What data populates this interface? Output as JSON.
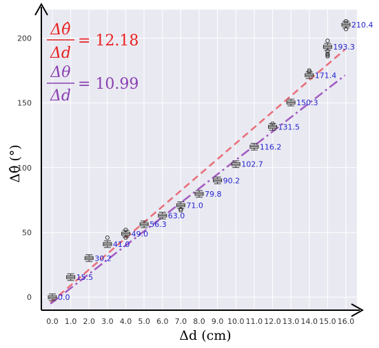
{
  "chart_data": {
    "type": "box",
    "x_categories": [
      "0.0",
      "1.0",
      "2.0",
      "3.0",
      "4.0",
      "5.0",
      "6.0",
      "7.0",
      "8.0",
      "9.0",
      "10.0",
      "11.0",
      "12.0",
      "13.0",
      "14.0",
      "15.0",
      "16.0"
    ],
    "x_values": [
      0,
      1,
      2,
      3,
      4,
      5,
      6,
      7,
      8,
      9,
      10,
      11,
      12,
      13,
      14,
      15,
      16
    ],
    "medians": [
      0.0,
      15.5,
      30.2,
      41.0,
      49.0,
      56.3,
      63.0,
      71.0,
      79.8,
      90.2,
      102.7,
      116.2,
      131.5,
      150.3,
      171.4,
      193.3,
      210.4
    ],
    "median_labels": [
      "0.0",
      "15.5",
      "30.2",
      "41.0",
      "49.0",
      "56.3",
      "63.0",
      "71.0",
      "79.8",
      "90.2",
      "102.7",
      "116.2",
      "131.5",
      "150.3",
      "171.4",
      "193.3",
      "210.4"
    ],
    "outliers": [
      [],
      [],
      [],
      [
        46
      ],
      [
        52,
        46
      ],
      [],
      [],
      [
        68,
        67
      ],
      [],
      [],
      [],
      [],
      [
        134
      ],
      [],
      [
        175,
        174
      ],
      [
        198,
        190,
        188,
        187,
        186
      ],
      [
        213,
        207
      ]
    ],
    "xlabel": "Δd (cm)",
    "ylabel": "Δθ̂ (°)",
    "y_ticks": [
      0,
      50,
      100,
      150,
      200
    ],
    "y_tick_labels": [
      "0",
      "50",
      "100",
      "150",
      "200"
    ],
    "xlim": [
      -0.6,
      16.6
    ],
    "ylim": [
      -10,
      222
    ],
    "grid": true,
    "background": "#e9e9f2",
    "box_color": "#333333",
    "median_label_color": "#1f1fcf",
    "fit_lines": [
      {
        "name": "hat",
        "slope": 12.18,
        "intercept": -3,
        "x_range": [
          0,
          16
        ],
        "style": "dashed",
        "color": "#e8707a",
        "eq_numerator": "Δθ̂",
        "eq_denominator": "Δd",
        "eq_value": "= 12.18",
        "eq_color": "#e82020"
      },
      {
        "name": "plain",
        "slope": 10.99,
        "intercept": -4,
        "x_range": [
          0,
          16
        ],
        "style": "dashdot",
        "color": "#a35cc0",
        "eq_numerator": "Δθ",
        "eq_denominator": "Δd",
        "eq_value": "= 10.99",
        "eq_color": "#8a3fb0"
      }
    ]
  }
}
